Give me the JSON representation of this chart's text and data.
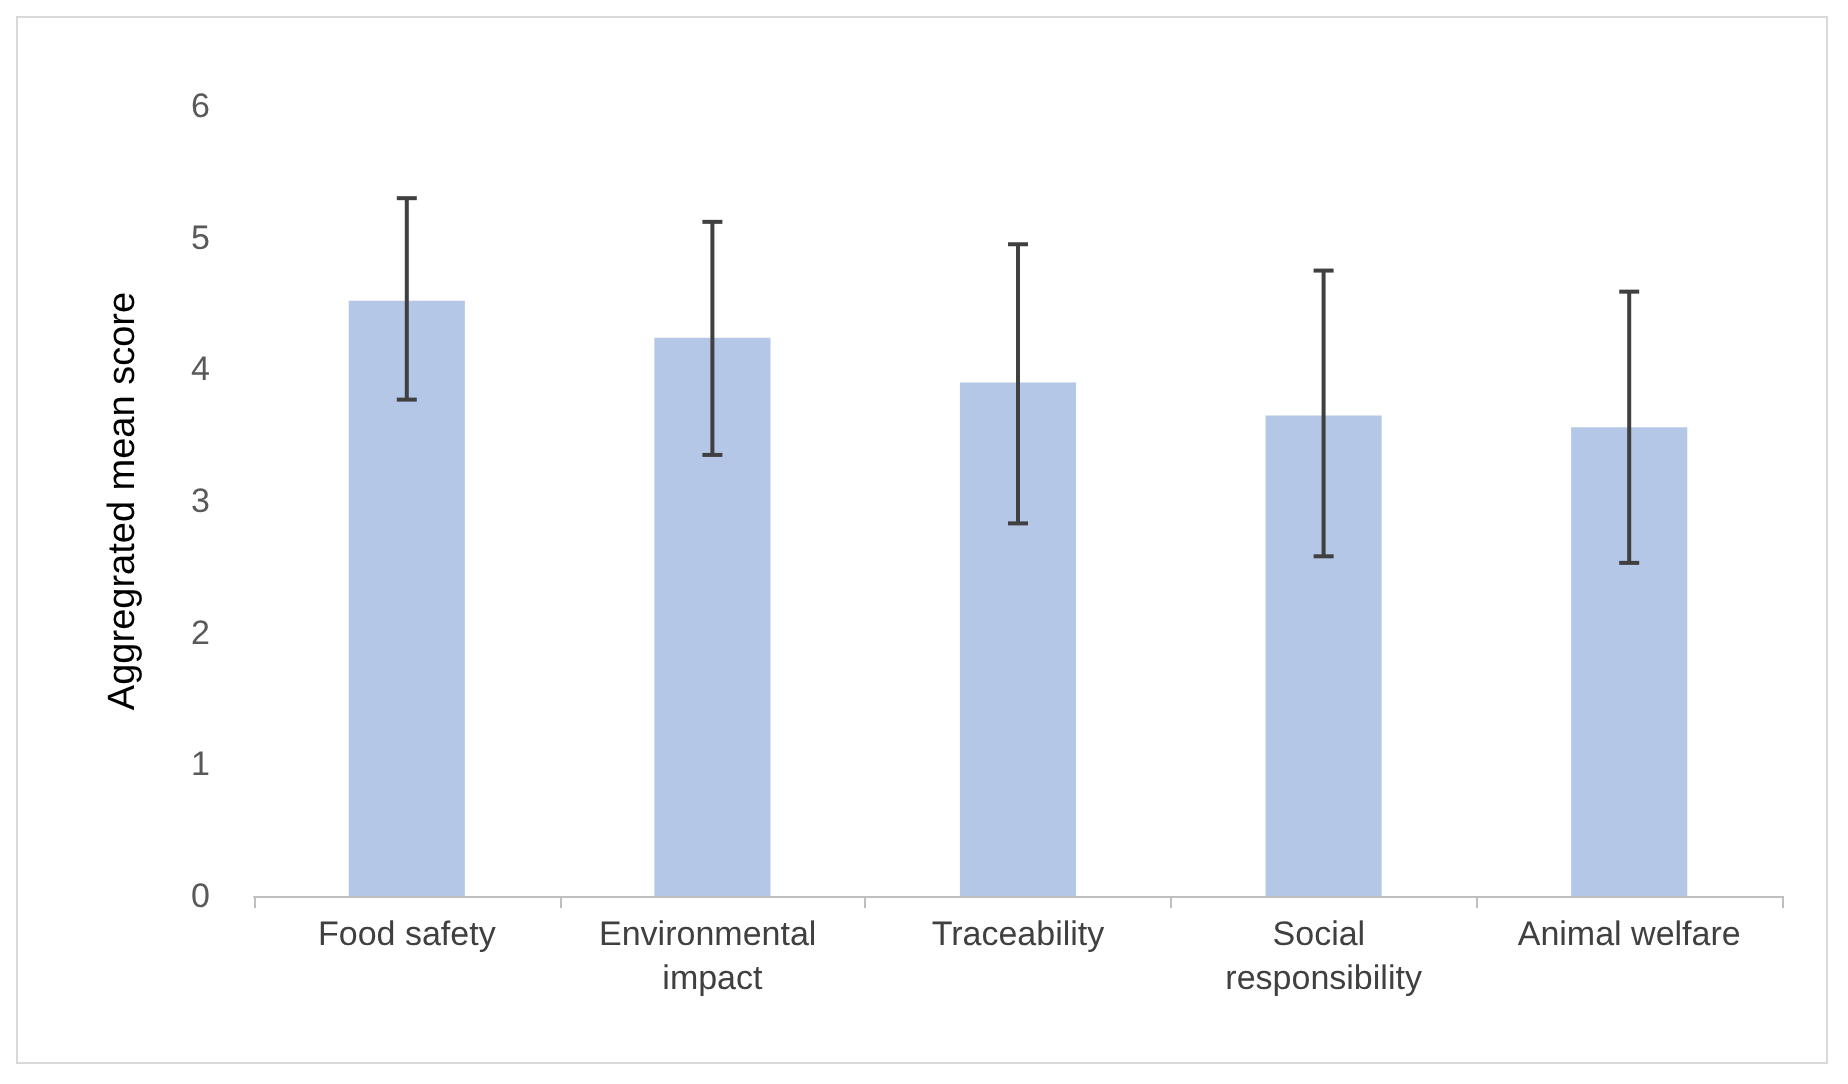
{
  "chart_data": {
    "type": "bar",
    "ylabel": "Aggregrated mean score",
    "categories": [
      "Food safety",
      "Environmental impact",
      "Traceability",
      "Social responsibility",
      "Animal welfare"
    ],
    "values": [
      4.52,
      4.24,
      3.9,
      3.65,
      3.56
    ],
    "errors": [
      [
        3.77,
        5.3
      ],
      [
        3.35,
        5.12
      ],
      [
        2.83,
        4.95
      ],
      [
        2.58,
        4.75
      ],
      [
        2.53,
        4.59
      ]
    ],
    "color": "#b4c7e7",
    "ylim": [
      0,
      6
    ],
    "yticks": [
      0,
      1,
      2,
      3,
      4,
      5,
      6
    ],
    "grid": false
  }
}
